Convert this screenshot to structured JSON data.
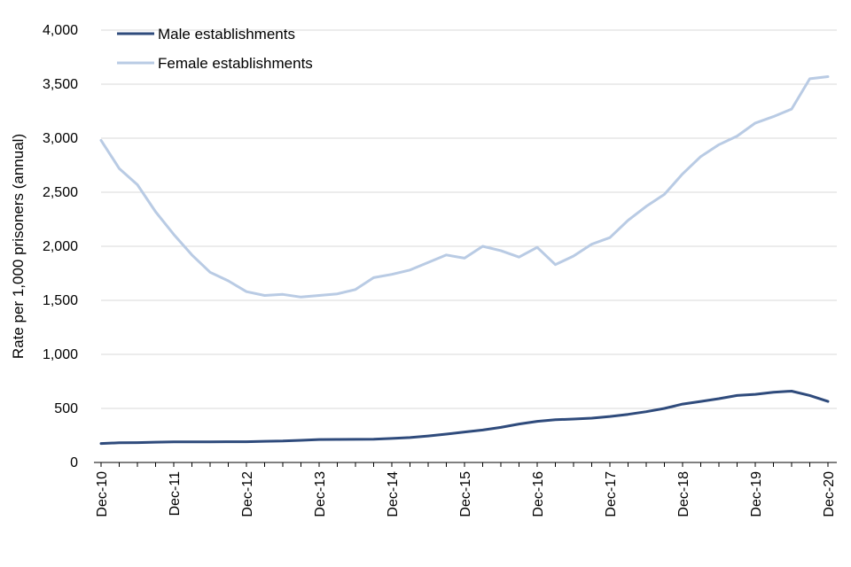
{
  "chart_data": {
    "type": "line",
    "title": "",
    "xlabel": "",
    "ylabel": "Rate per 1,000 prisoners (annual)",
    "ylim": [
      0,
      4000
    ],
    "y_ticks": [
      "0",
      "500",
      "1,000",
      "1,500",
      "2,000",
      "2,500",
      "3,000",
      "3,500",
      "4,000"
    ],
    "x_tick_labels": [
      "Dec-10",
      "Dec-11",
      "Dec-12",
      "Dec-13",
      "Dec-14",
      "Dec-15",
      "Dec-16",
      "Dec-17",
      "Dec-18",
      "Dec-19",
      "Dec-20"
    ],
    "x": [
      "Dec-10",
      "Mar-11",
      "Jun-11",
      "Sep-11",
      "Dec-11",
      "Mar-12",
      "Jun-12",
      "Sep-12",
      "Dec-12",
      "Mar-13",
      "Jun-13",
      "Sep-13",
      "Dec-13",
      "Mar-14",
      "Jun-14",
      "Sep-14",
      "Dec-14",
      "Mar-15",
      "Jun-15",
      "Sep-15",
      "Dec-15",
      "Mar-16",
      "Jun-16",
      "Sep-16",
      "Dec-16",
      "Mar-17",
      "Jun-17",
      "Sep-17",
      "Dec-17",
      "Mar-18",
      "Jun-18",
      "Sep-18",
      "Dec-18",
      "Mar-19",
      "Jun-19",
      "Sep-19",
      "Dec-19",
      "Mar-20",
      "Jun-20",
      "Sep-20",
      "Dec-20"
    ],
    "grid": true,
    "legend_position": "top-left",
    "series": [
      {
        "name": "Male establishments",
        "color": "#2f4b7c",
        "values": [
          175,
          182,
          184,
          188,
          190,
          190,
          191,
          192,
          192,
          196,
          198,
          205,
          212,
          213,
          214,
          215,
          222,
          230,
          245,
          262,
          282,
          300,
          325,
          356,
          380,
          395,
          402,
          410,
          425,
          445,
          470,
          500,
          540,
          565,
          590,
          620,
          630,
          650,
          660,
          620,
          565
        ]
      },
      {
        "name": "Female establishments",
        "color": "#b9cbe4",
        "values": [
          2980,
          2720,
          2570,
          2320,
          2110,
          1920,
          1760,
          1680,
          1580,
          1545,
          1555,
          1530,
          1545,
          1560,
          1600,
          1710,
          1740,
          1780,
          1850,
          1920,
          1890,
          2000,
          1960,
          1900,
          1990,
          1830,
          1910,
          2020,
          2080,
          2240,
          2370,
          2480,
          2670,
          2830,
          2940,
          3020,
          3140,
          3200,
          3270,
          3550,
          3570
        ]
      }
    ]
  }
}
